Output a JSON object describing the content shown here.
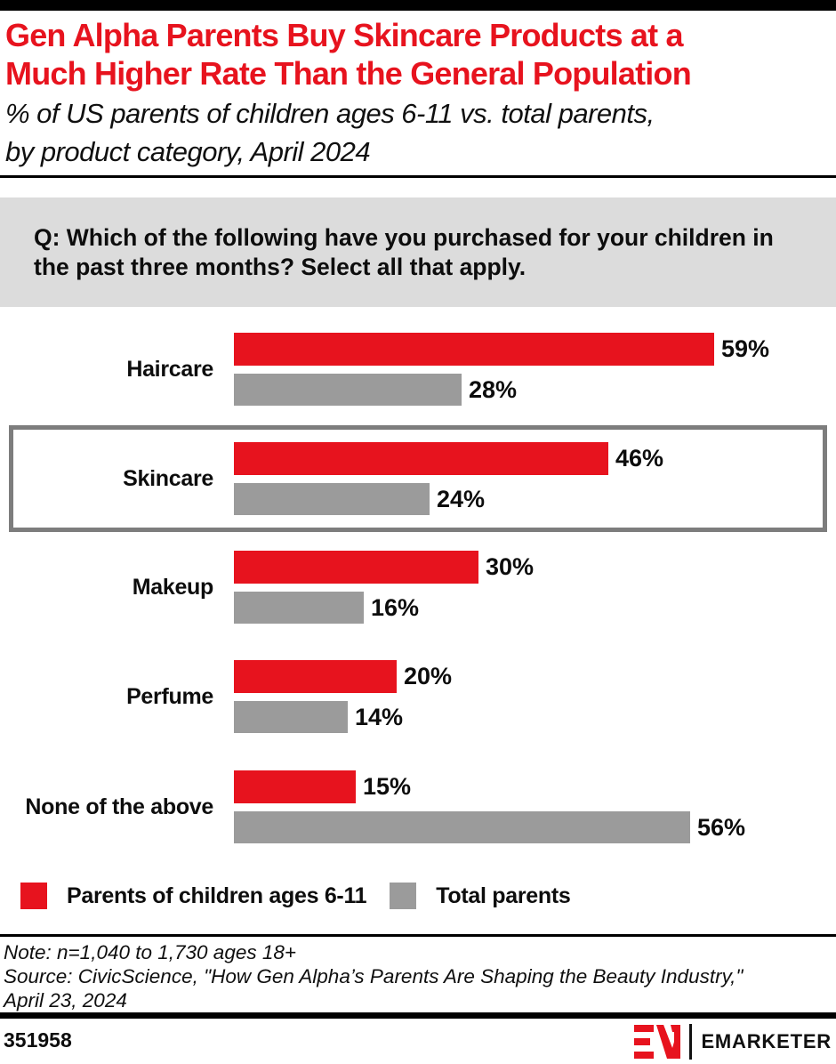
{
  "header": {
    "title_lines": [
      "Gen Alpha Parents Buy Skincare Products at a",
      "Much Higher Rate Than the General Population"
    ],
    "subtitle_lines": [
      "% of US parents of children ages 6-11 vs. total parents,",
      "by product category, April 2024"
    ]
  },
  "question": "Q: Which of the following have you purchased for your children in the past three months? Select all that apply.",
  "chart_data": {
    "type": "bar",
    "orientation": "horizontal",
    "title": "Gen Alpha Parents Buy Skincare Products at a Much Higher Rate Than the General Population",
    "subtitle": "% of US parents of children ages 6-11 vs. total parents, by product category, April 2024",
    "categories": [
      "Haircare",
      "Skincare",
      "Makeup",
      "Perfume",
      "None of the above"
    ],
    "series": [
      {
        "name": "Parents of children ages 6-11",
        "color": "#e7131e",
        "values": [
          59,
          46,
          30,
          20,
          15
        ]
      },
      {
        "name": "Total parents",
        "color": "#9b9b9b",
        "values": [
          28,
          24,
          16,
          14,
          56
        ]
      }
    ],
    "unit": "%",
    "value_labels": true,
    "xlim": [
      0,
      60
    ],
    "grid": false,
    "legend_position": "bottom",
    "highlighted_category": "Skincare"
  },
  "legend": {
    "items": [
      {
        "label": "Parents of children ages 6-11",
        "color": "#e7131e"
      },
      {
        "label": "Total parents",
        "color": "#9b9b9b"
      }
    ]
  },
  "footer": {
    "note": "Note: n=1,040 to 1,730 ages 18+",
    "source_lines": [
      "Source: CivicScience, \"How Gen Alpha’s Parents Are Shaping the Beauty Industry,\"",
      "April 23, 2024"
    ],
    "chart_id": "351958",
    "brand": "EMARKETER"
  },
  "colors": {
    "accent_red": "#e7131e",
    "bar_gray": "#9b9b9b",
    "question_box_bg": "#dcdcdc",
    "highlight_border": "#7d7d7d"
  }
}
